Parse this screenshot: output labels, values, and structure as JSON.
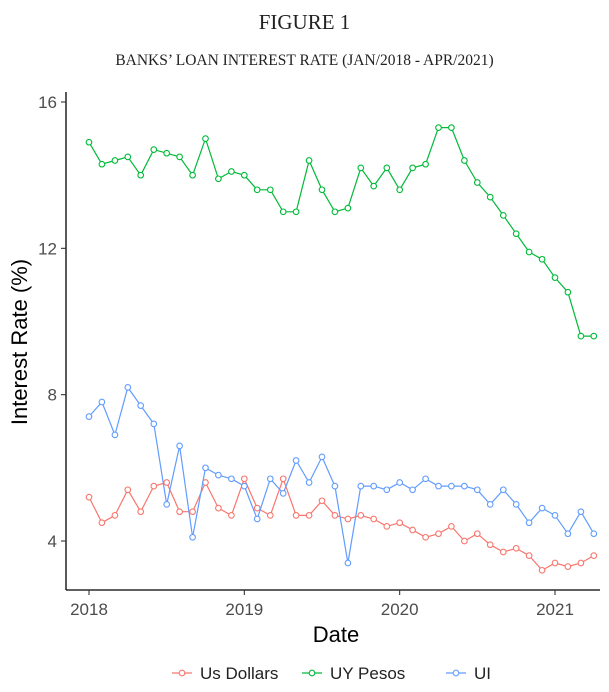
{
  "figure": {
    "label": "FIGURE 1",
    "subtitle": "BANKS’ LOAN INTEREST RATE (JAN/2018 - APR/2021)"
  },
  "chart_data": {
    "type": "line",
    "xlabel": "Date",
    "ylabel": "Interest Rate (%)",
    "x_tick_labels": [
      "2018",
      "2019",
      "2020",
      "2021"
    ],
    "y_tick_labels": [
      "4",
      "8",
      "12",
      "16"
    ],
    "xlim": [
      2017.9,
      2021.3
    ],
    "ylim": [
      2.6,
      16.0
    ],
    "legend_position": "bottom",
    "grid": false,
    "x": [
      2018.0,
      2018.083,
      2018.167,
      2018.25,
      2018.333,
      2018.417,
      2018.5,
      2018.583,
      2018.667,
      2018.75,
      2018.833,
      2018.917,
      2019.0,
      2019.083,
      2019.167,
      2019.25,
      2019.333,
      2019.417,
      2019.5,
      2019.583,
      2019.667,
      2019.75,
      2019.833,
      2019.917,
      2020.0,
      2020.083,
      2020.167,
      2020.25,
      2020.333,
      2020.417,
      2020.5,
      2020.583,
      2020.667,
      2020.75,
      2020.833,
      2020.917,
      2021.0,
      2021.083,
      2021.167,
      2021.25
    ],
    "series": [
      {
        "name": "Us Dollars",
        "color": "#f8766d",
        "values": [
          5.2,
          4.5,
          4.7,
          5.4,
          4.8,
          5.5,
          5.6,
          4.8,
          4.8,
          5.6,
          4.9,
          4.7,
          5.7,
          4.9,
          4.7,
          5.7,
          4.7,
          4.7,
          5.1,
          4.7,
          4.6,
          4.7,
          4.6,
          4.4,
          4.5,
          4.3,
          4.1,
          4.2,
          4.4,
          4.0,
          4.2,
          3.9,
          3.7,
          3.8,
          3.6,
          3.2,
          3.4,
          3.3,
          3.4,
          3.6
        ]
      },
      {
        "name": "UY Pesos",
        "color": "#00ba38",
        "values": [
          14.9,
          14.3,
          14.4,
          14.5,
          14.0,
          14.7,
          14.6,
          14.5,
          14.0,
          15.0,
          13.9,
          14.1,
          14.0,
          13.6,
          13.6,
          13.0,
          13.0,
          14.4,
          13.6,
          13.0,
          13.1,
          14.2,
          13.7,
          14.2,
          13.6,
          14.2,
          14.3,
          15.3,
          15.3,
          14.4,
          13.8,
          13.4,
          12.9,
          12.4,
          11.9,
          11.7,
          11.2,
          10.8,
          9.6,
          9.6
        ]
      },
      {
        "name": "UI",
        "color": "#619cff",
        "values": [
          7.4,
          7.8,
          6.9,
          8.2,
          7.7,
          7.2,
          5.0,
          6.6,
          4.1,
          6.0,
          5.8,
          5.7,
          5.5,
          4.6,
          5.7,
          5.3,
          6.2,
          5.6,
          6.3,
          5.5,
          3.4,
          5.5,
          5.5,
          5.4,
          5.6,
          5.4,
          5.7,
          5.5,
          5.5,
          5.5,
          5.4,
          5.0,
          5.4,
          5.0,
          4.5,
          4.9,
          4.7,
          4.2,
          4.8,
          4.2
        ]
      }
    ]
  }
}
